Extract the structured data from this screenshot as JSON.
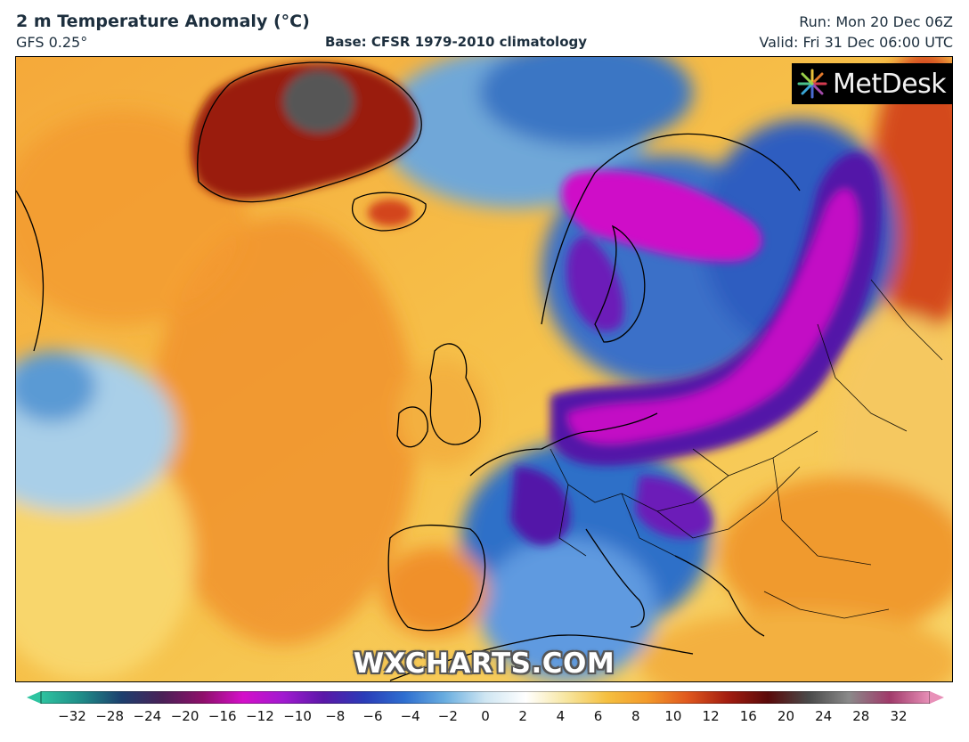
{
  "header": {
    "title": "2 m Temperature Anomaly (°C)",
    "model": "GFS 0.25°",
    "base": "Base: CFSR 1979-2010 climatology",
    "run": "Run: Mon 20 Dec 06Z",
    "valid": "Valid: Fri 31 Dec 06:00 UTC"
  },
  "branding": {
    "logo_text": "MetDesk",
    "logo_icon": "starburst-icon",
    "watermark": "WXCHARTS.COM"
  },
  "colorbar": {
    "tick_labels": [
      "−32",
      "−28",
      "−24",
      "−20",
      "−16",
      "−12",
      "−10",
      "−8",
      "−6",
      "−4",
      "−2",
      "0",
      "2",
      "4",
      "6",
      "8",
      "10",
      "12",
      "16",
      "20",
      "24",
      "28",
      "32"
    ],
    "colors": [
      "#2ec4a0",
      "#1f8c88",
      "#1d3f6e",
      "#4a2157",
      "#8e0f6a",
      "#d40fc9",
      "#a11ad0",
      "#5a18a8",
      "#2a3cb8",
      "#2e6fd0",
      "#6aaee0",
      "#cfe6f2",
      "#ffffff",
      "#f7e6a0",
      "#f5c040",
      "#f39a2a",
      "#e0581e",
      "#a31d10",
      "#5a0a0a",
      "#4a4a4a",
      "#8a8a8a",
      "#a03a6a",
      "#e890b8"
    ],
    "units": "°C"
  },
  "map": {
    "region": "North Atlantic and Europe",
    "colors": {
      "ocean_warm": "#f4b43a",
      "ocean_mild": "#f7cd57",
      "cold_anomaly": "#2f6fc8",
      "very_cold": "#5218a8",
      "extreme_cold": "#cf10c8",
      "greenland_warm": "#8e1a10",
      "greenland_peak": "#555555"
    }
  }
}
